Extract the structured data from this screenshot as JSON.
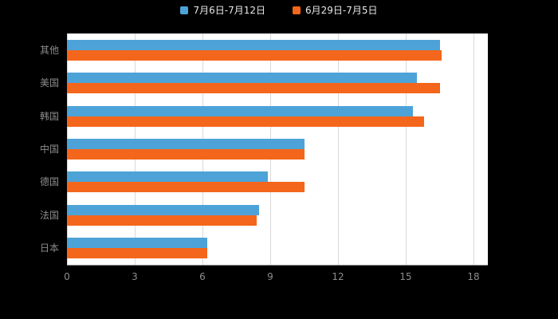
{
  "chart_data": {
    "type": "bar",
    "orientation": "horizontal",
    "title": "",
    "categories": [
      "其他",
      "美国",
      "韩国",
      "中国",
      "德国",
      "法国",
      "日本"
    ],
    "series": [
      {
        "name": "7月6日-7月12日",
        "color": "#4da3d8",
        "values": [
          16.5,
          15.5,
          15.3,
          10.5,
          8.9,
          8.5,
          6.2
        ]
      },
      {
        "name": "6月29日-7月5日",
        "color": "#f4661b",
        "values": [
          16.6,
          16.5,
          15.8,
          10.5,
          10.5,
          8.4,
          6.2
        ]
      }
    ],
    "xlim": [
      0,
      18
    ],
    "xticks": [
      0,
      3,
      6,
      9,
      12,
      15,
      18
    ],
    "grid": true,
    "legend_position": "top"
  },
  "colors": {
    "background": "#000000",
    "plot_background": "#ffffff",
    "gridline": "#d9d9d9",
    "axis_line": "#8c8c8c",
    "axis_label": "#8c8c8c",
    "legend_text": "#e8e8e8"
  }
}
